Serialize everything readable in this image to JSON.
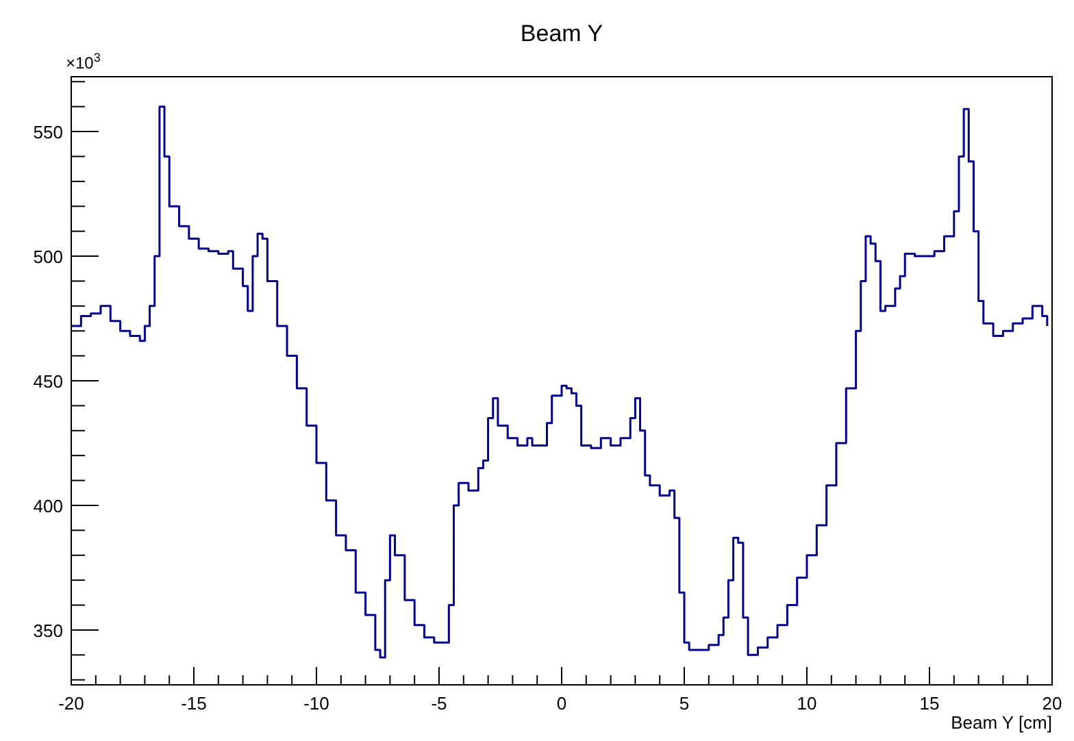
{
  "chart_data": {
    "type": "step",
    "title": "Beam Y",
    "xlabel": "Beam Y [cm]",
    "annotations": [
      "×10$^{3}$"
    ],
    "xlim": [
      -20,
      20
    ],
    "xticks": [
      -20,
      -15,
      -10,
      -5,
      0,
      5,
      10,
      15,
      20
    ],
    "ylim": [
      328,
      572
    ],
    "yticks": [
      350,
      400,
      450,
      500,
      550
    ],
    "grid": false,
    "series": [
      {
        "color": "#00008b",
        "x": [
          -20,
          -19.6,
          -19.2,
          -18.8,
          -18.4,
          -18,
          -17.6,
          -17.2,
          -17,
          -16.8,
          -16.6,
          -16.4,
          -16.2,
          -16,
          -15.6,
          -15.2,
          -14.8,
          -14.4,
          -14,
          -13.6,
          -13.4,
          -13,
          -12.8,
          -12.6,
          -12.4,
          -12.2,
          -12,
          -11.6,
          -11.2,
          -10.8,
          -10.4,
          -10,
          -9.6,
          -9.2,
          -8.8,
          -8.4,
          -8,
          -7.6,
          -7.4,
          -7.2,
          -7,
          -6.8,
          -6.4,
          -6,
          -5.6,
          -5.2,
          -4.8,
          -4.6,
          -4.4,
          -4.2,
          -3.8,
          -3.4,
          -3.2,
          -3,
          -2.8,
          -2.6,
          -2.2,
          -1.8,
          -1.4,
          -1.2,
          -0.8,
          -0.6,
          -0.4,
          0,
          0.2,
          0.4,
          0.6,
          0.8,
          1.2,
          1.6,
          2,
          2.4,
          2.8,
          3,
          3.2,
          3.4,
          3.6,
          4,
          4.4,
          4.6,
          4.8,
          5,
          5.2,
          5.6,
          6,
          6.4,
          6.6,
          6.8,
          7,
          7.2,
          7.4,
          7.6,
          8,
          8.4,
          8.8,
          9.2,
          9.6,
          10,
          10.4,
          10.8,
          11.2,
          11.6,
          12,
          12.2,
          12.4,
          12.6,
          12.8,
          13,
          13.2,
          13.6,
          13.8,
          14,
          14.4,
          14.8,
          15.2,
          15.6,
          16,
          16.2,
          16.4,
          16.6,
          16.8,
          17,
          17.2,
          17.6,
          18,
          18.4,
          18.8,
          19.2,
          19.6,
          19.8
        ],
        "values": [
          472,
          476,
          477,
          480,
          474,
          470,
          468,
          466,
          472,
          480,
          500,
          560,
          540,
          520,
          512,
          507,
          503,
          502,
          501,
          502,
          495,
          488,
          478,
          500,
          509,
          507,
          490,
          472,
          460,
          447,
          432,
          417,
          402,
          388,
          382,
          365,
          356,
          342,
          339,
          370,
          388,
          380,
          362,
          352,
          347,
          345,
          345,
          360,
          400,
          409,
          406,
          415,
          418,
          435,
          443,
          432,
          427,
          424,
          427,
          424,
          424,
          433,
          444,
          448,
          447,
          445,
          440,
          424,
          423,
          427,
          424,
          427,
          435,
          443,
          430,
          412,
          408,
          404,
          406,
          395,
          365,
          345,
          342,
          342,
          344,
          348,
          355,
          370,
          387,
          385,
          355,
          340,
          343,
          347,
          352,
          360,
          371,
          380,
          392,
          408,
          425,
          447,
          470,
          490,
          508,
          505,
          498,
          478,
          480,
          487,
          492,
          501,
          500,
          500,
          502,
          508,
          518,
          540,
          559,
          538,
          510,
          482,
          473,
          468,
          470,
          473,
          475,
          480,
          476,
          472
        ]
      }
    ]
  }
}
